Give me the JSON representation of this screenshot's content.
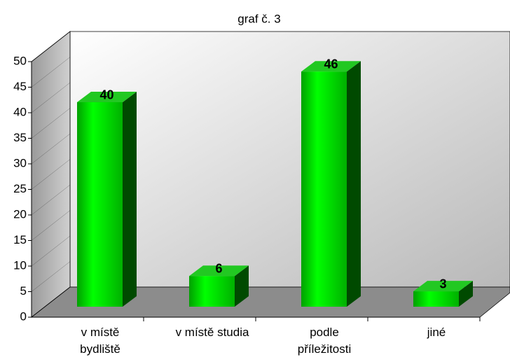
{
  "chart_data": {
    "type": "bar3d",
    "title": "graf č. 3",
    "categories": [
      "v místě bydliště",
      "v místě studia",
      "podle příležitosti",
      "jiné"
    ],
    "values": [
      40,
      6,
      46,
      3
    ],
    "color": "#00e000",
    "ylim": [
      0,
      50
    ],
    "yticks": [
      0,
      5,
      10,
      15,
      20,
      25,
      30,
      35,
      40,
      45,
      50
    ]
  }
}
